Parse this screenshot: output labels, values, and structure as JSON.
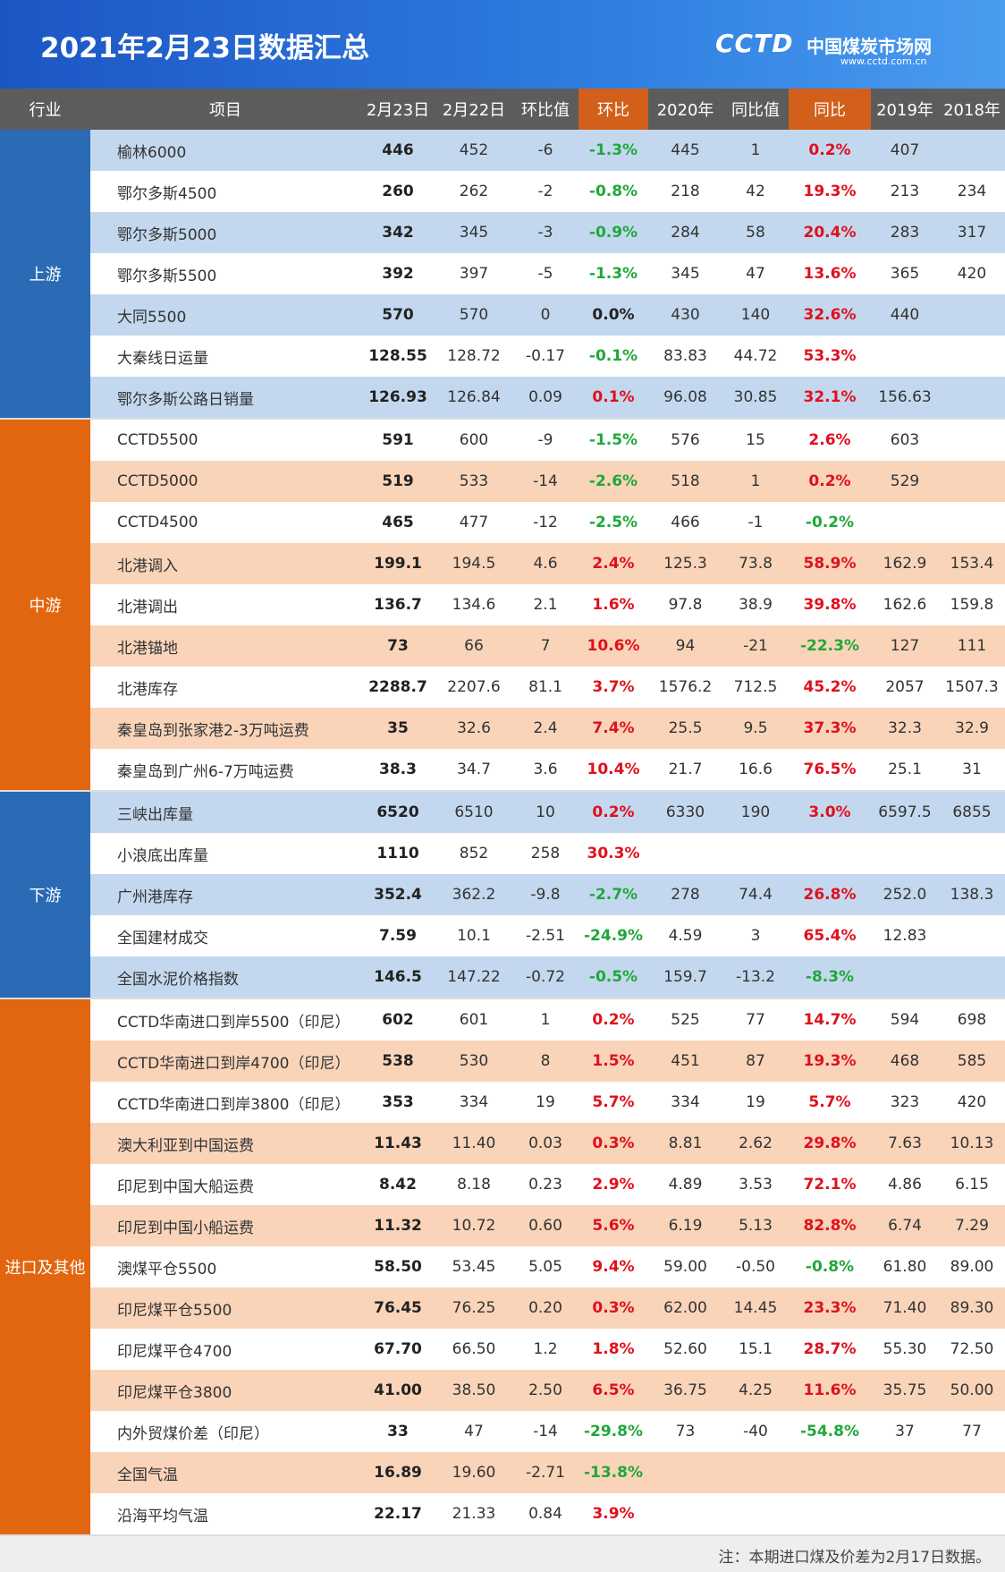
{
  "header": {
    "title": "2021年2月23日数据汇总",
    "logo": "CCTD",
    "site": "中国煤炭市场网",
    "url": "www.cctd.com.cn"
  },
  "table": {
    "columns": [
      "行业",
      "项目",
      "2月23日",
      "2月22日",
      "环比值",
      "环比",
      "2020年",
      "同比值",
      "同比",
      "2019年",
      "2018年"
    ],
    "groups": [
      {
        "name": "上游",
        "rows": [
          [
            "榆林6000",
            "446",
            "452",
            "-6",
            "-1.3%",
            "445",
            "1",
            "0.2%",
            "407"
          ],
          [
            "鄂尔多斯4500",
            "260",
            "262",
            "-2",
            "-0.8%",
            "218",
            "42",
            "19.3%",
            "213",
            "234"
          ],
          [
            "鄂尔多斯5000",
            "342",
            "345",
            "-3",
            "-0.9%",
            "284",
            "58",
            "20.4%",
            "283",
            "317"
          ],
          [
            "鄂尔多斯5500",
            "392",
            "397",
            "-5",
            "-1.3%",
            "345",
            "47",
            "13.6%",
            "365",
            "420"
          ],
          [
            "大同5500",
            "570",
            "570",
            "0",
            "0.0%",
            "430",
            "140",
            "32.6%",
            "440"
          ],
          [
            "大秦线日运量",
            "128.55",
            "128.72",
            "-0.17",
            "-0.1%",
            "83.83",
            "44.72",
            "53.3%"
          ],
          [
            "鄂尔多斯公路日销量",
            "126.93",
            "126.84",
            "0.09",
            "0.1%",
            "96.08",
            "30.85",
            "32.1%",
            "156.63"
          ]
        ]
      },
      {
        "name": "中游",
        "rows": [
          [
            "CCTD5500",
            "591",
            "600",
            "-9",
            "-1.5%",
            "576",
            "15",
            "2.6%",
            "603"
          ],
          [
            "CCTD5000",
            "519",
            "533",
            "-14",
            "-2.6%",
            "518",
            "1",
            "0.2%",
            "529"
          ],
          [
            "CCTD4500",
            "465",
            "477",
            "-12",
            "-2.5%",
            "466",
            "-1",
            "-0.2%"
          ],
          [
            "北港调入",
            "199.1",
            "194.5",
            "4.6",
            "2.4%",
            "125.3",
            "73.8",
            "58.9%",
            "162.9",
            "153.4"
          ],
          [
            "北港调出",
            "136.7",
            "134.6",
            "2.1",
            "1.6%",
            "97.8",
            "38.9",
            "39.8%",
            "162.6",
            "159.8"
          ],
          [
            "北港锚地",
            "73",
            "66",
            "7",
            "10.6%",
            "94",
            "-21",
            "-22.3%",
            "127",
            "111"
          ],
          [
            "北港库存",
            "2288.7",
            "2207.6",
            "81.1",
            "3.7%",
            "1576.2",
            "712.5",
            "45.2%",
            "2057",
            "1507.3"
          ],
          [
            "秦皇岛到张家港2-3万吨运费",
            "35",
            "32.6",
            "2.4",
            "7.4%",
            "25.5",
            "9.5",
            "37.3%",
            "32.3",
            "32.9"
          ],
          [
            "秦皇岛到广州6-7万吨运费",
            "38.3",
            "34.7",
            "3.6",
            "10.4%",
            "21.7",
            "16.6",
            "76.5%",
            "25.1",
            "31"
          ]
        ]
      },
      {
        "name": "下游",
        "rows": [
          [
            "三峡出库量",
            "6520",
            "6510",
            "10",
            "0.2%",
            "6330",
            "190",
            "3.0%",
            "6597.5",
            "6855"
          ],
          [
            "小浪底出库量",
            "1110",
            "852",
            "258",
            "30.3%"
          ],
          [
            "广州港库存",
            "352.4",
            "362.2",
            "-9.8",
            "-2.7%",
            "278",
            "74.4",
            "26.8%",
            "252.0",
            "138.3"
          ],
          [
            "全国建材成交",
            "7.59",
            "10.1",
            "-2.51",
            "-24.9%",
            "4.59",
            "3",
            "65.4%",
            "12.83"
          ],
          [
            "全国水泥价格指数",
            "146.5",
            "147.22",
            "-0.72",
            "-0.5%",
            "159.7",
            "-13.2",
            "-8.3%"
          ]
        ]
      },
      {
        "name": "进口及其他",
        "rows": [
          [
            "CCTD华南进口到岸5500（印尼）",
            "602",
            "601",
            "1",
            "0.2%",
            "525",
            "77",
            "14.7%",
            "594",
            "698"
          ],
          [
            "CCTD华南进口到岸4700（印尼）",
            "538",
            "530",
            "8",
            "1.5%",
            "451",
            "87",
            "19.3%",
            "468",
            "585"
          ],
          [
            "CCTD华南进口到岸3800（印尼）",
            "353",
            "334",
            "19",
            "5.7%",
            "334",
            "19",
            "5.7%",
            "323",
            "420"
          ],
          [
            "澳大利亚到中国运费",
            "11.43",
            "11.40",
            "0.03",
            "0.3%",
            "8.81",
            "2.62",
            "29.8%",
            "7.63",
            "10.13"
          ],
          [
            "印尼到中国大船运费",
            "8.42",
            "8.18",
            "0.23",
            "2.9%",
            "4.89",
            "3.53",
            "72.1%",
            "4.86",
            "6.15"
          ],
          [
            "印尼到中国小船运费",
            "11.32",
            "10.72",
            "0.60",
            "5.6%",
            "6.19",
            "5.13",
            "82.8%",
            "6.74",
            "7.29"
          ],
          [
            "澳煤平仓5500",
            "58.50",
            "53.45",
            "5.05",
            "9.4%",
            "59.00",
            "-0.50",
            "-0.8%",
            "61.80",
            "89.00"
          ],
          [
            "印尼煤平仓5500",
            "76.45",
            "76.25",
            "0.20",
            "0.3%",
            "62.00",
            "14.45",
            "23.3%",
            "71.40",
            "89.30"
          ],
          [
            "印尼煤平仓4700",
            "67.70",
            "66.50",
            "1.2",
            "1.8%",
            "52.60",
            "15.1",
            "28.7%",
            "55.30",
            "72.50"
          ],
          [
            "印尼煤平仓3800",
            "41.00",
            "38.50",
            "2.50",
            "6.5%",
            "36.75",
            "4.25",
            "11.6%",
            "35.75",
            "50.00"
          ],
          [
            "内外贸煤价差（印尼）",
            "33",
            "47",
            "-14",
            "-29.8%",
            "73",
            "-40",
            "-54.8%",
            "37",
            "77"
          ],
          [
            "全国气温",
            "16.89",
            "19.60",
            "-2.71",
            "-13.8%"
          ],
          [
            "沿海平均气温",
            "22.17",
            "21.33",
            "0.84",
            "3.9%"
          ]
        ]
      }
    ]
  },
  "footer": {
    "note": "注：本期进口煤及价差为2月17日数据。"
  }
}
